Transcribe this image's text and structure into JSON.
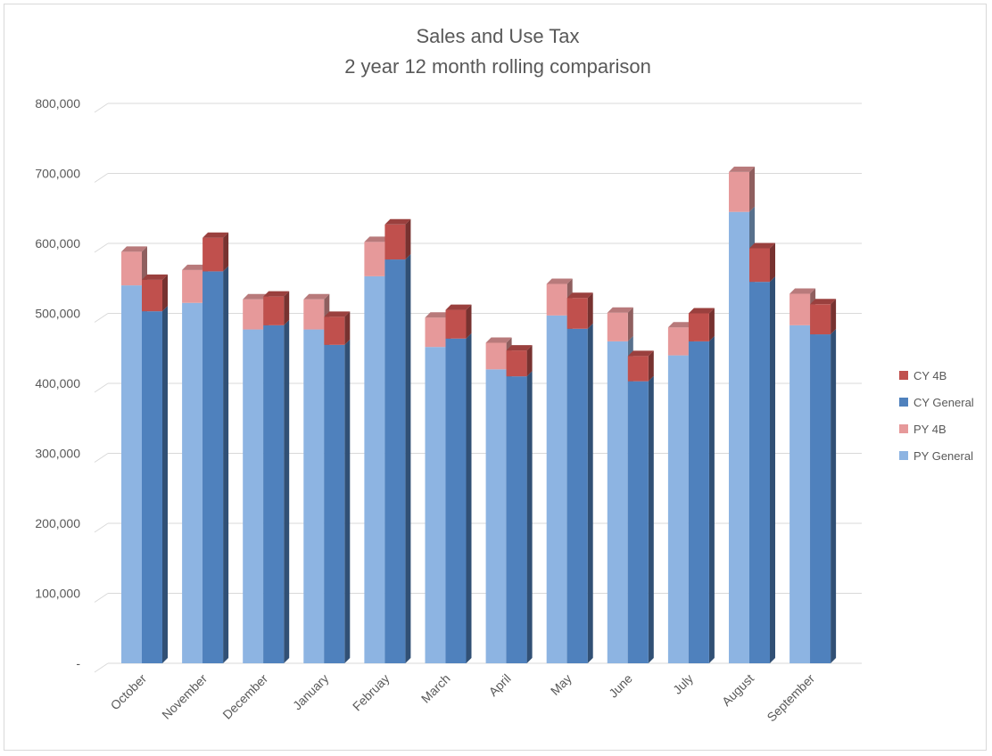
{
  "chart_data": {
    "type": "bar",
    "stacked": true,
    "three_d": true,
    "title": "Sales and Use Tax",
    "subtitle": "2 year 12 month rolling comparison",
    "categories": [
      "October",
      "November",
      "December",
      "January",
      "Februay",
      "March",
      "April",
      "May",
      "June",
      "July",
      "August",
      "September"
    ],
    "ylim": [
      0,
      800000
    ],
    "yticks": [
      {
        "value": 0,
        "label": "-"
      },
      {
        "value": 100000,
        "label": "100,000"
      },
      {
        "value": 200000,
        "label": "200,000"
      },
      {
        "value": 300000,
        "label": "300,000"
      },
      {
        "value": 400000,
        "label": "400,000"
      },
      {
        "value": 500000,
        "label": "500,000"
      },
      {
        "value": 600000,
        "label": "600,000"
      },
      {
        "value": 700000,
        "label": "700,000"
      },
      {
        "value": 800000,
        "label": "800,000"
      }
    ],
    "grid": true,
    "legend_position": "right",
    "groups": [
      {
        "name": "PY",
        "stack": [
          {
            "series": "PY General",
            "color": "#8db4e2",
            "values": [
              540000,
              515000,
              477000,
              477000,
              553000,
              452000,
              420000,
              497000,
              460000,
              440000,
              645000,
              483000
            ]
          },
          {
            "series": "PY 4B",
            "color": "#e6999a",
            "values": [
              48000,
              47000,
              43000,
              43000,
              49000,
              42000,
              38000,
              45000,
              41000,
              40000,
              57000,
              45000
            ]
          }
        ]
      },
      {
        "name": "CY",
        "stack": [
          {
            "series": "CY General",
            "color": "#4f81bd",
            "values": [
              503000,
              560000,
              483000,
              455000,
              577000,
              464000,
              410000,
              478000,
              403000,
              460000,
              545000,
              470000
            ]
          },
          {
            "series": "CY 4B",
            "color": "#c0504d",
            "values": [
              45000,
              48000,
              41000,
              40000,
              50000,
              41000,
              37000,
              44000,
              36000,
              40000,
              48000,
              43000
            ]
          }
        ]
      }
    ],
    "legend": [
      {
        "label": "CY 4B",
        "color": "#c0504d"
      },
      {
        "label": "CY General",
        "color": "#4f81bd"
      },
      {
        "label": "PY 4B",
        "color": "#e6999a"
      },
      {
        "label": "PY General",
        "color": "#8db4e2"
      }
    ]
  }
}
